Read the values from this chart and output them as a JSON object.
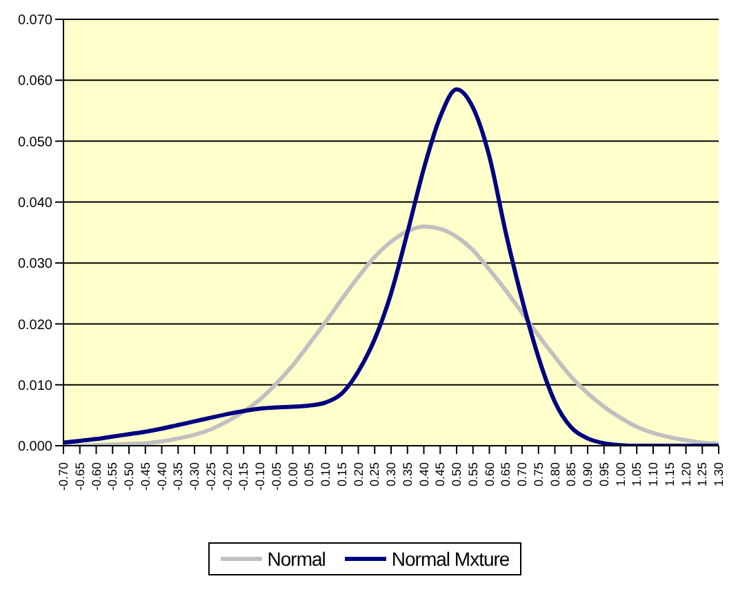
{
  "chart_data": {
    "type": "line",
    "categories": [
      "-0.70",
      "-0.65",
      "-0.60",
      "-0.55",
      "-0.50",
      "-0.45",
      "-0.40",
      "-0.35",
      "-0.30",
      "-0.25",
      "-0.20",
      "-0.15",
      "-0.10",
      "-0.05",
      "0.00",
      "0.05",
      "0.10",
      "0.15",
      "0.20",
      "0.25",
      "0.30",
      "0.35",
      "0.40",
      "0.45",
      "0.50",
      "0.55",
      "0.60",
      "0.65",
      "0.70",
      "0.75",
      "0.80",
      "0.85",
      "0.90",
      "0.95",
      "1.00",
      "1.05",
      "1.10",
      "1.15",
      "1.20",
      "1.25",
      "1.30"
    ],
    "series": [
      {
        "name": "Normal",
        "color": "#c0c0c0",
        "values": [
          0.0,
          0.0,
          0.0001,
          0.0002,
          0.0003,
          0.0004,
          0.0007,
          0.0012,
          0.0018,
          0.0027,
          0.004,
          0.0056,
          0.0076,
          0.0102,
          0.0132,
          0.0167,
          0.0203,
          0.0241,
          0.0277,
          0.031,
          0.0335,
          0.0352,
          0.036,
          0.0356,
          0.0343,
          0.0321,
          0.0289,
          0.0255,
          0.0218,
          0.0181,
          0.0146,
          0.0113,
          0.0086,
          0.0064,
          0.0046,
          0.0031,
          0.0021,
          0.0014,
          0.0009,
          0.0005,
          0.0003
        ]
      },
      {
        "name": "Normal Mxture",
        "color": "#000080",
        "values": [
          0.0005,
          0.0008,
          0.0011,
          0.0015,
          0.0019,
          0.0023,
          0.0028,
          0.0034,
          0.004,
          0.0046,
          0.0052,
          0.0057,
          0.0061,
          0.0063,
          0.0064,
          0.0066,
          0.0071,
          0.0086,
          0.0122,
          0.0175,
          0.025,
          0.035,
          0.0455,
          0.054,
          0.0585,
          0.0555,
          0.0475,
          0.035,
          0.024,
          0.0145,
          0.0072,
          0.003,
          0.0012,
          0.0004,
          0.0001,
          0.0,
          0.0,
          0.0,
          0.0,
          0.0,
          0.0
        ]
      }
    ],
    "ylim": [
      0,
      0.07
    ],
    "yticks": [
      {
        "value": 0,
        "label": "0.000"
      },
      {
        "value": 0.01,
        "label": "0.010"
      },
      {
        "value": 0.02,
        "label": "0.020"
      },
      {
        "value": 0.03,
        "label": "0.030"
      },
      {
        "value": 0.04,
        "label": "0.040"
      },
      {
        "value": 0.05,
        "label": "0.050"
      },
      {
        "value": 0.06,
        "label": "0.060"
      },
      {
        "value": 0.07,
        "label": "0.070"
      }
    ],
    "grid": "y",
    "legend": "bottom",
    "marker": "none",
    "line_style": "solid"
  }
}
